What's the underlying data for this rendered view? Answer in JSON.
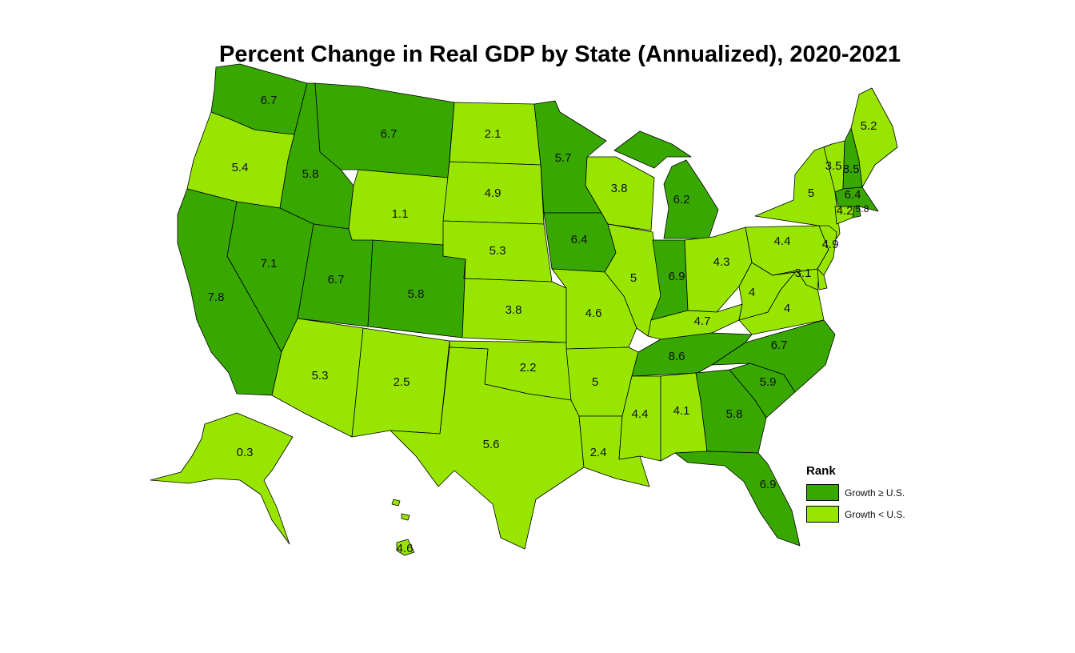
{
  "title": "Percent Change in Real GDP by State (Annualized), 2020-2021",
  "colors": {
    "growth_ge_us": "#38a800",
    "growth_lt_us": "#98e600"
  },
  "legend": {
    "title": "Rank",
    "items": [
      {
        "label": "Growth ≥ U.S.",
        "color": "#38a800"
      },
      {
        "label": "Growth < U.S.",
        "color": "#98e600"
      }
    ]
  },
  "states": [
    {
      "id": "WA",
      "value": "6.7",
      "rank": "ge"
    },
    {
      "id": "OR",
      "value": "5.4",
      "rank": "lt"
    },
    {
      "id": "CA",
      "value": "7.8",
      "rank": "ge"
    },
    {
      "id": "ID",
      "value": "5.8",
      "rank": "ge"
    },
    {
      "id": "NV",
      "value": "7.1",
      "rank": "ge"
    },
    {
      "id": "MT",
      "value": "6.7",
      "rank": "ge"
    },
    {
      "id": "WY",
      "value": "1.1",
      "rank": "lt"
    },
    {
      "id": "UT",
      "value": "6.7",
      "rank": "ge"
    },
    {
      "id": "AZ",
      "value": "5.3",
      "rank": "lt"
    },
    {
      "id": "CO",
      "value": "5.8",
      "rank": "ge"
    },
    {
      "id": "NM",
      "value": "2.5",
      "rank": "lt"
    },
    {
      "id": "ND",
      "value": "2.1",
      "rank": "lt"
    },
    {
      "id": "SD",
      "value": "4.9",
      "rank": "lt"
    },
    {
      "id": "NE",
      "value": "5.3",
      "rank": "lt"
    },
    {
      "id": "KS",
      "value": "3.8",
      "rank": "lt"
    },
    {
      "id": "OK",
      "value": "2.2",
      "rank": "lt"
    },
    {
      "id": "TX",
      "value": "5.6",
      "rank": "lt"
    },
    {
      "id": "MN",
      "value": "5.7",
      "rank": "ge"
    },
    {
      "id": "IA",
      "value": "6.4",
      "rank": "ge"
    },
    {
      "id": "MO",
      "value": "4.6",
      "rank": "lt"
    },
    {
      "id": "AR",
      "value": "5",
      "rank": "lt"
    },
    {
      "id": "LA",
      "value": "2.4",
      "rank": "lt"
    },
    {
      "id": "WI",
      "value": "3.8",
      "rank": "lt"
    },
    {
      "id": "IL",
      "value": "5",
      "rank": "lt"
    },
    {
      "id": "MI",
      "value": "6.2",
      "rank": "ge"
    },
    {
      "id": "IN",
      "value": "6.9",
      "rank": "ge"
    },
    {
      "id": "OH",
      "value": "4.3",
      "rank": "lt"
    },
    {
      "id": "KY",
      "value": "4.7",
      "rank": "lt"
    },
    {
      "id": "TN",
      "value": "8.6",
      "rank": "ge"
    },
    {
      "id": "MS",
      "value": "4.4",
      "rank": "lt"
    },
    {
      "id": "AL",
      "value": "4.1",
      "rank": "lt"
    },
    {
      "id": "GA",
      "value": "5.8",
      "rank": "ge"
    },
    {
      "id": "FL",
      "value": "6.9",
      "rank": "ge"
    },
    {
      "id": "SC",
      "value": "5.9",
      "rank": "ge"
    },
    {
      "id": "NC",
      "value": "6.7",
      "rank": "ge"
    },
    {
      "id": "VA",
      "value": "4",
      "rank": "lt"
    },
    {
      "id": "WV",
      "value": "4",
      "rank": "lt"
    },
    {
      "id": "PA",
      "value": "4.4",
      "rank": "lt"
    },
    {
      "id": "NY",
      "value": "5",
      "rank": "lt"
    },
    {
      "id": "VT",
      "value": "3.5",
      "rank": "lt"
    },
    {
      "id": "NH",
      "value": "8.5",
      "rank": "ge"
    },
    {
      "id": "ME",
      "value": "5.2",
      "rank": "lt"
    },
    {
      "id": "MA",
      "value": "6.4",
      "rank": "ge"
    },
    {
      "id": "CT",
      "value": "4.2",
      "rank": "lt"
    },
    {
      "id": "RI",
      "value": "5.8",
      "rank": "ge"
    },
    {
      "id": "NJ",
      "value": "4.9",
      "rank": "lt"
    },
    {
      "id": "MD",
      "value": "3.1",
      "rank": "lt"
    },
    {
      "id": "DE",
      "value": "",
      "rank": "lt"
    },
    {
      "id": "AK",
      "value": "0.3",
      "rank": "lt"
    },
    {
      "id": "HI",
      "value": "4.6",
      "rank": "lt"
    }
  ]
}
